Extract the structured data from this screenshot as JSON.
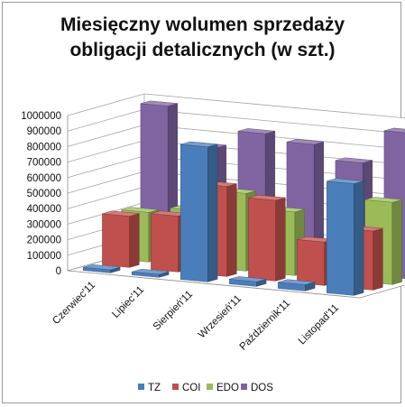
{
  "chart_data": {
    "type": "bar",
    "title_line1": "Miesięczny wolumen sprzedaży",
    "title_line2": "obligacji detalicznych (w szt.)",
    "categories": [
      "Czerwiec'11",
      "Lipiec'11",
      "Sierpień'11",
      "Wrzesień'11",
      "Październik'11",
      "Listopad'11"
    ],
    "series": [
      {
        "name": "TZ",
        "color": "#4a7ebb",
        "values": [
          20000,
          20000,
          870000,
          30000,
          40000,
          720000
        ]
      },
      {
        "name": "COI",
        "color": "#c0504d",
        "values": [
          330000,
          360000,
          580000,
          520000,
          280000,
          380000
        ]
      },
      {
        "name": "EDO",
        "color": "#9bbb59",
        "values": [
          320000,
          360000,
          500000,
          410000,
          220000,
          530000
        ]
      },
      {
        "name": "DOS",
        "color": "#8064a2",
        "values": [
          970000,
          730000,
          850000,
          810000,
          720000,
          940000
        ]
      }
    ],
    "yticks": [
      "1000000",
      "900000",
      "800000",
      "700000",
      "600000",
      "500000",
      "400000",
      "300000",
      "200000",
      "100000",
      "0"
    ],
    "ylim": [
      0,
      1000000
    ],
    "legend_position": "bottom",
    "grid": true
  }
}
